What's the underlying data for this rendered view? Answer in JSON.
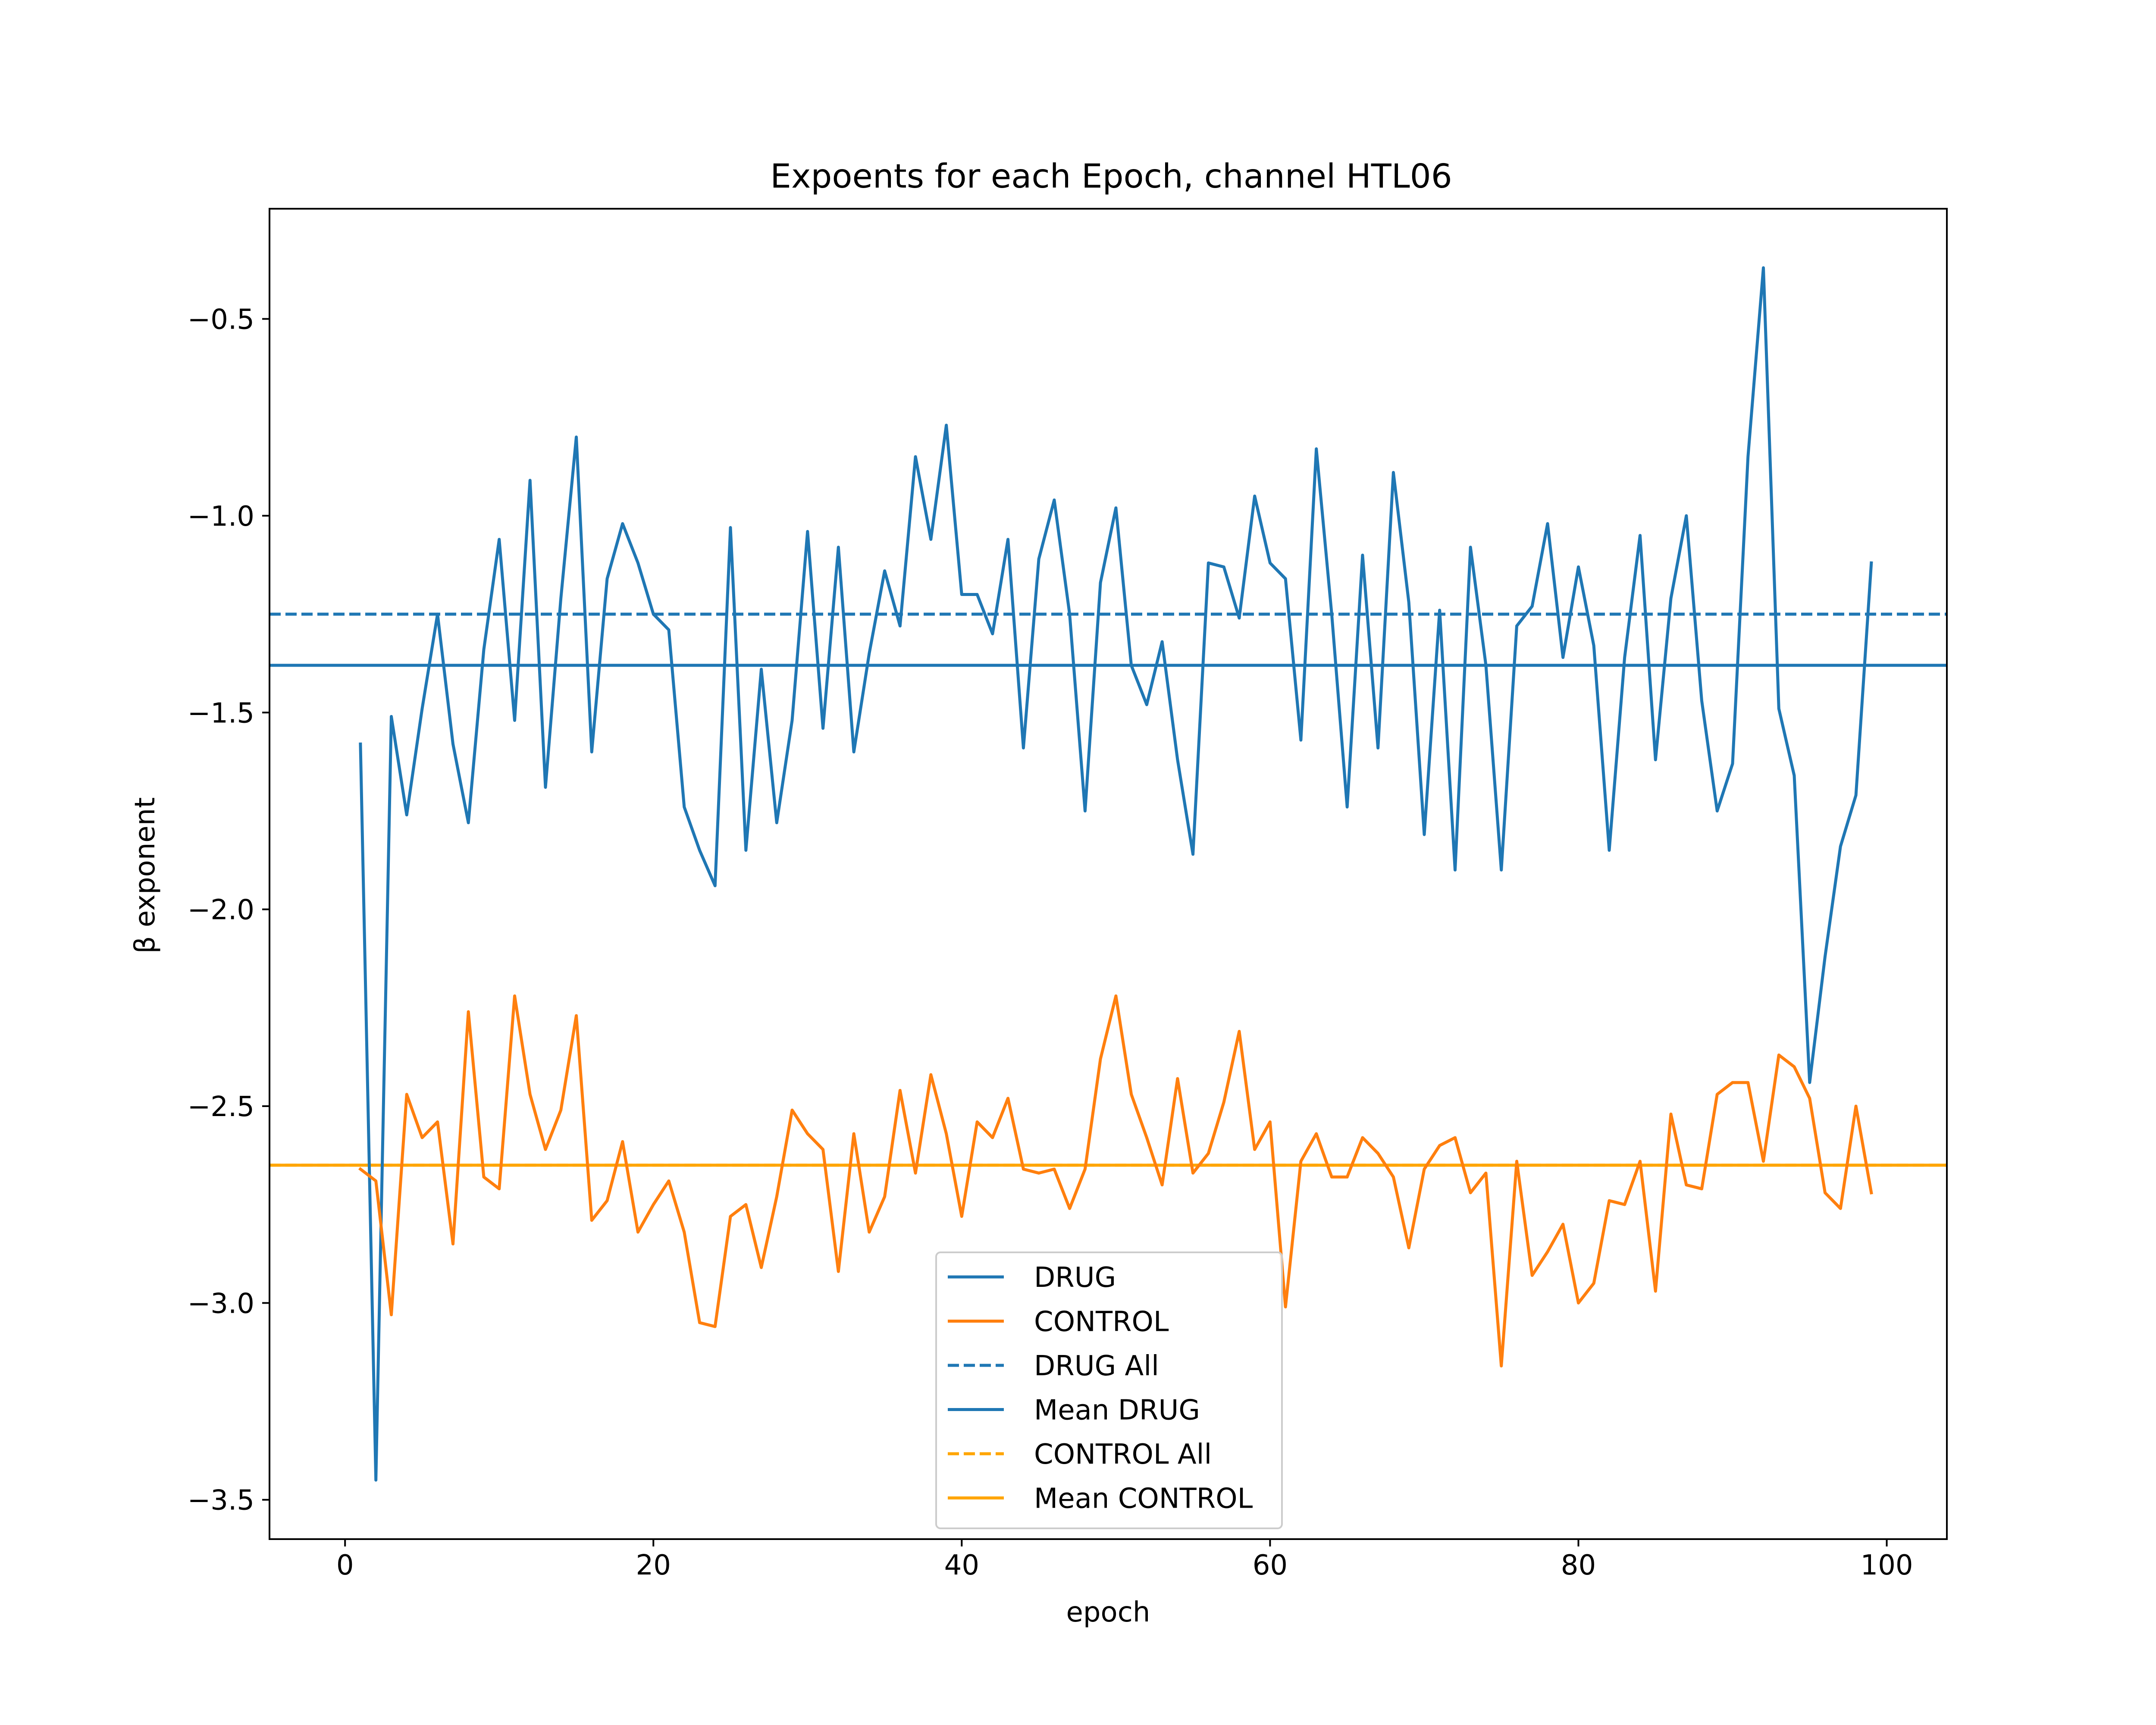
{
  "chart_data": {
    "type": "line",
    "title": "Expoents for each Epoch, channel HTL06",
    "xlabel": "epoch",
    "ylabel": "β exponent",
    "xlim": [
      -4.9,
      103.9
    ],
    "ylim": [
      -3.6,
      -0.22
    ],
    "xticks": [
      0,
      20,
      40,
      60,
      80,
      100
    ],
    "xtick_labels": [
      "0",
      "20",
      "40",
      "60",
      "80",
      "100"
    ],
    "yticks": [
      -3.5,
      -3.0,
      -2.5,
      -2.0,
      -1.5,
      -1.0,
      -0.5
    ],
    "ytick_labels": [
      "−3.5",
      "−3.0",
      "−2.5",
      "−2.0",
      "−1.5",
      "−1.0",
      "−0.5"
    ],
    "grid": false,
    "legend_position": "lower-center",
    "colors": {
      "drug": "#1f77b4",
      "control": "#ff7f0e",
      "control_ref": "#ffa500"
    },
    "x": [
      1,
      2,
      3,
      4,
      5,
      6,
      7,
      8,
      9,
      10,
      11,
      12,
      13,
      14,
      15,
      16,
      17,
      18,
      19,
      20,
      21,
      22,
      23,
      24,
      25,
      26,
      27,
      28,
      29,
      30,
      31,
      32,
      33,
      34,
      35,
      36,
      37,
      38,
      39,
      40,
      41,
      42,
      43,
      44,
      45,
      46,
      47,
      48,
      49,
      50,
      51,
      52,
      53,
      54,
      55,
      56,
      57,
      58,
      59,
      60,
      61,
      62,
      63,
      64,
      65,
      66,
      67,
      68,
      69,
      70,
      71,
      72,
      73,
      74,
      75,
      76,
      77,
      78,
      79,
      80,
      81,
      82,
      83,
      84,
      85,
      86,
      87,
      88,
      89,
      90,
      91,
      92,
      93,
      94,
      95,
      96,
      97,
      98,
      99
    ],
    "series": [
      {
        "name": "DRUG",
        "color": "#1f77b4",
        "style": "solid",
        "values": [
          -1.58,
          -3.45,
          -1.51,
          -1.76,
          -1.49,
          -1.25,
          -1.58,
          -1.78,
          -1.34,
          -1.06,
          -1.52,
          -0.91,
          -1.69,
          -1.21,
          -0.8,
          -1.6,
          -1.16,
          -1.02,
          -1.12,
          -1.25,
          -1.29,
          -1.74,
          -1.85,
          -1.94,
          -1.03,
          -1.85,
          -1.39,
          -1.78,
          -1.52,
          -1.04,
          -1.54,
          -1.08,
          -1.6,
          -1.35,
          -1.14,
          -1.28,
          -0.85,
          -1.06,
          -0.77,
          -1.2,
          -1.2,
          -1.3,
          -1.06,
          -1.59,
          -1.11,
          -0.96,
          -1.25,
          -1.75,
          -1.17,
          -0.98,
          -1.38,
          -1.48,
          -1.32,
          -1.62,
          -1.86,
          -1.12,
          -1.13,
          -1.26,
          -0.95,
          -1.12,
          -1.16,
          -1.57,
          -0.83,
          -1.25,
          -1.74,
          -1.1,
          -1.59,
          -0.89,
          -1.22,
          -1.81,
          -1.24,
          -1.9,
          -1.08,
          -1.38,
          -1.9,
          -1.28,
          -1.23,
          -1.02,
          -1.36,
          -1.13,
          -1.33,
          -1.85,
          -1.36,
          -1.05,
          -1.62,
          -1.21,
          -1.0,
          -1.47,
          -1.75,
          -1.63,
          -0.85,
          -0.37,
          -1.49,
          -1.66,
          -2.44,
          -2.12,
          -1.84,
          -1.71,
          -1.12
        ]
      },
      {
        "name": "CONTROL",
        "color": "#ff7f0e",
        "style": "solid",
        "values": [
          -2.66,
          -2.69,
          -3.03,
          -2.47,
          -2.58,
          -2.54,
          -2.85,
          -2.26,
          -2.68,
          -2.71,
          -2.22,
          -2.47,
          -2.61,
          -2.51,
          -2.27,
          -2.79,
          -2.74,
          -2.59,
          -2.82,
          -2.75,
          -2.69,
          -2.82,
          -3.05,
          -3.06,
          -2.78,
          -2.75,
          -2.91,
          -2.73,
          -2.51,
          -2.57,
          -2.61,
          -2.92,
          -2.57,
          -2.82,
          -2.73,
          -2.46,
          -2.67,
          -2.42,
          -2.57,
          -2.78,
          -2.54,
          -2.58,
          -2.48,
          -2.66,
          -2.67,
          -2.66,
          -2.76,
          -2.66,
          -2.38,
          -2.22,
          -2.47,
          -2.58,
          -2.7,
          -2.43,
          -2.67,
          -2.62,
          -2.49,
          -2.31,
          -2.61,
          -2.54,
          -3.01,
          -2.64,
          -2.57,
          -2.68,
          -2.68,
          -2.58,
          -2.62,
          -2.68,
          -2.86,
          -2.66,
          -2.6,
          -2.58,
          -2.72,
          -2.67,
          -3.16,
          -2.64,
          -2.93,
          -2.87,
          -2.8,
          -3.0,
          -2.95,
          -2.74,
          -2.75,
          -2.64,
          -2.97,
          -2.52,
          -2.7,
          -2.71,
          -2.47,
          -2.44,
          -2.44,
          -2.64,
          -2.37,
          -2.4,
          -2.48,
          -2.72,
          -2.76,
          -2.5,
          -2.72
        ]
      }
    ],
    "reference_lines": [
      {
        "name": "DRUG All",
        "value": -1.25,
        "color": "#1f77b4",
        "style": "dashed"
      },
      {
        "name": "Mean DRUG",
        "value": -1.38,
        "color": "#1f77b4",
        "style": "solid"
      },
      {
        "name": "CONTROL All",
        "value": -2.65,
        "color": "#ffa500",
        "style": "dashed"
      },
      {
        "name": "Mean CONTROL",
        "value": -2.65,
        "color": "#ffa500",
        "style": "solid"
      }
    ],
    "legend": [
      {
        "label": "DRUG",
        "color": "#1f77b4",
        "style": "solid"
      },
      {
        "label": "CONTROL",
        "color": "#ff7f0e",
        "style": "solid"
      },
      {
        "label": "DRUG All",
        "color": "#1f77b4",
        "style": "dashed"
      },
      {
        "label": "Mean DRUG",
        "color": "#1f77b4",
        "style": "solid"
      },
      {
        "label": "CONTROL All",
        "color": "#ffa500",
        "style": "dashed"
      },
      {
        "label": "Mean CONTROL",
        "color": "#ffa500",
        "style": "solid"
      }
    ]
  }
}
